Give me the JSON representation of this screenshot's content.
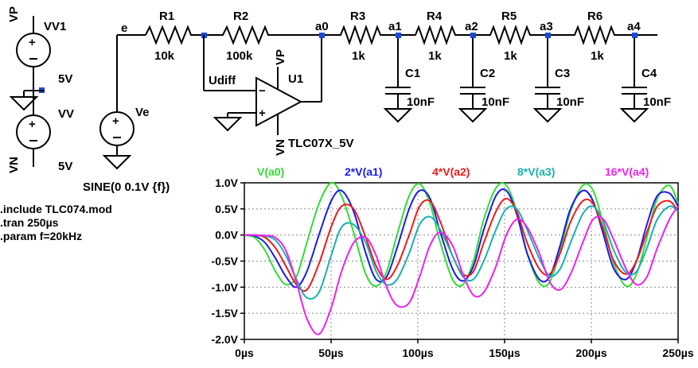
{
  "schematic": {
    "sources": {
      "vv1_name": "VV1",
      "vv1_value": "5V",
      "vv_name": "VV",
      "vv_value": "5V",
      "vp_label": "VP",
      "vn_label": "VN",
      "ve_name": "Ve",
      "ve_value": "SINE(0 0.1V {f})"
    },
    "net_labels": {
      "e": "e",
      "udiff": "Udiff",
      "a0": "a0",
      "a1": "a1",
      "a2": "a2",
      "a3": "a3",
      "a4": "a4",
      "vp": "VP",
      "vn": "VN"
    },
    "resistors": [
      {
        "name": "R1",
        "value": "10k"
      },
      {
        "name": "R2",
        "value": "100k"
      },
      {
        "name": "R3",
        "value": "1k"
      },
      {
        "name": "R4",
        "value": "1k"
      },
      {
        "name": "R5",
        "value": "1k"
      },
      {
        "name": "R6",
        "value": "1k"
      }
    ],
    "capacitors": [
      {
        "name": "C1",
        "value": "10nF"
      },
      {
        "name": "C2",
        "value": "10nF"
      },
      {
        "name": "C3",
        "value": "10nF"
      },
      {
        "name": "C4",
        "value": "10nF"
      }
    ],
    "opamp": {
      "name": "U1",
      "model": "TLC07X_5V"
    },
    "directives": [
      ".include TLC074.mod",
      ".tran 250µs",
      ".param f=20kHz"
    ]
  },
  "chart_data": {
    "type": "line",
    "x_unit": "µs",
    "xlim": [
      0,
      250
    ],
    "ylim": [
      -2.0,
      1.0
    ],
    "x_ticks": [
      "0µs",
      "50µs",
      "100µs",
      "150µs",
      "200µs",
      "250µs"
    ],
    "y_ticks": [
      "1.0V",
      "0.5V",
      "0.0V",
      "-0.5V",
      "-1.0V",
      "-1.5V",
      "-2.0V"
    ],
    "grid": true,
    "series": [
      {
        "name": "V(a0)",
        "color": "#33dd33",
        "x": [
          0,
          6,
          12,
          18,
          24,
          30,
          36,
          43,
          50,
          56,
          63,
          70,
          76,
          82,
          88,
          95,
          101,
          107,
          113,
          120,
          126,
          132,
          138,
          145,
          151,
          157,
          163,
          170,
          176,
          182,
          188,
          195,
          201,
          207,
          213,
          220,
          226,
          232,
          238,
          245,
          250
        ],
        "y": [
          0,
          -0.05,
          -0.3,
          -0.7,
          -0.95,
          -0.8,
          -0.15,
          0.6,
          1.0,
          0.75,
          0.05,
          -0.75,
          -0.98,
          -0.7,
          0.0,
          0.75,
          0.98,
          0.6,
          -0.15,
          -0.85,
          -0.95,
          -0.5,
          0.3,
          0.9,
          0.95,
          0.45,
          -0.35,
          -0.92,
          -0.9,
          -0.3,
          0.45,
          0.95,
          0.85,
          0.2,
          -0.55,
          -0.98,
          -0.75,
          -0.05,
          0.7,
          0.95,
          0.6
        ]
      },
      {
        "name": "2*V(a1)",
        "color": "#1a1aee",
        "x": [
          0,
          6,
          12,
          18,
          24,
          30,
          36,
          43,
          50,
          56,
          63,
          70,
          76,
          82,
          88,
          95,
          101,
          107,
          113,
          120,
          126,
          132,
          138,
          145,
          151,
          157,
          163,
          170,
          176,
          182,
          188,
          195,
          201,
          207,
          213,
          220,
          226,
          232,
          238,
          245,
          250
        ],
        "y": [
          0,
          -0.02,
          -0.15,
          -0.45,
          -0.8,
          -1.0,
          -0.7,
          0.0,
          0.65,
          0.85,
          0.45,
          -0.35,
          -0.85,
          -0.8,
          -0.25,
          0.5,
          0.85,
          0.7,
          0.05,
          -0.65,
          -0.88,
          -0.6,
          0.1,
          0.75,
          0.85,
          0.4,
          -0.35,
          -0.85,
          -0.8,
          -0.2,
          0.5,
          0.85,
          0.65,
          0.0,
          -0.65,
          -0.85,
          -0.5,
          0.2,
          0.75,
          0.8,
          0.55
        ]
      },
      {
        "name": "4*V(a2)",
        "color": "#ee1a1a",
        "x": [
          0,
          6,
          12,
          18,
          24,
          30,
          36,
          43,
          50,
          56,
          63,
          70,
          76,
          82,
          88,
          95,
          101,
          107,
          113,
          120,
          126,
          132,
          138,
          145,
          151,
          157,
          163,
          170,
          176,
          182,
          188,
          195,
          201,
          207,
          213,
          220,
          226,
          232,
          238,
          245,
          250
        ],
        "y": [
          0,
          0,
          -0.05,
          -0.25,
          -0.6,
          -0.95,
          -1.05,
          -0.55,
          0.15,
          0.55,
          0.5,
          -0.05,
          -0.6,
          -0.85,
          -0.6,
          0.0,
          0.55,
          0.65,
          0.25,
          -0.4,
          -0.75,
          -0.7,
          -0.15,
          0.45,
          0.7,
          0.45,
          -0.15,
          -0.65,
          -0.75,
          -0.35,
          0.25,
          0.65,
          0.6,
          0.1,
          -0.5,
          -0.75,
          -0.5,
          0.05,
          0.55,
          0.65,
          0.45
        ]
      },
      {
        "name": "8*V(a3)",
        "color": "#1ab0b0",
        "x": [
          0,
          6,
          12,
          18,
          24,
          30,
          36,
          43,
          50,
          56,
          63,
          70,
          76,
          82,
          88,
          95,
          101,
          107,
          113,
          120,
          126,
          132,
          138,
          145,
          151,
          157,
          163,
          170,
          176,
          182,
          188,
          195,
          201,
          207,
          213,
          220,
          226,
          232,
          238,
          245,
          250
        ],
        "y": [
          0,
          0,
          -0.02,
          -0.1,
          -0.4,
          -0.85,
          -1.2,
          -1.1,
          -0.4,
          0.15,
          0.2,
          -0.15,
          -0.7,
          -0.95,
          -0.85,
          -0.35,
          0.2,
          0.35,
          0.1,
          -0.4,
          -0.8,
          -0.85,
          -0.5,
          0.1,
          0.5,
          0.5,
          0.1,
          -0.45,
          -0.78,
          -0.65,
          -0.15,
          0.4,
          0.55,
          0.25,
          -0.3,
          -0.72,
          -0.7,
          -0.25,
          0.3,
          0.55,
          0.45
        ]
      },
      {
        "name": "16*V(a4)",
        "color": "#ee22ee",
        "x": [
          0,
          6,
          12,
          18,
          24,
          30,
          36,
          43,
          50,
          56,
          63,
          70,
          76,
          82,
          88,
          95,
          101,
          107,
          113,
          120,
          126,
          132,
          138,
          145,
          151,
          157,
          163,
          170,
          176,
          182,
          188,
          195,
          201,
          207,
          213,
          220,
          226,
          232,
          238,
          245,
          250
        ],
        "y": [
          0,
          0,
          -0.01,
          -0.05,
          -0.3,
          -0.9,
          -1.6,
          -1.9,
          -1.4,
          -0.7,
          -0.15,
          -0.05,
          -0.4,
          -1.0,
          -1.35,
          -1.3,
          -0.8,
          -0.2,
          0.05,
          -0.2,
          -0.75,
          -1.15,
          -1.1,
          -0.6,
          0.0,
          0.3,
          0.15,
          -0.35,
          -0.9,
          -1.05,
          -0.75,
          -0.15,
          0.3,
          0.3,
          -0.1,
          -0.65,
          -0.95,
          -0.8,
          -0.25,
          0.3,
          0.55
        ]
      }
    ]
  }
}
